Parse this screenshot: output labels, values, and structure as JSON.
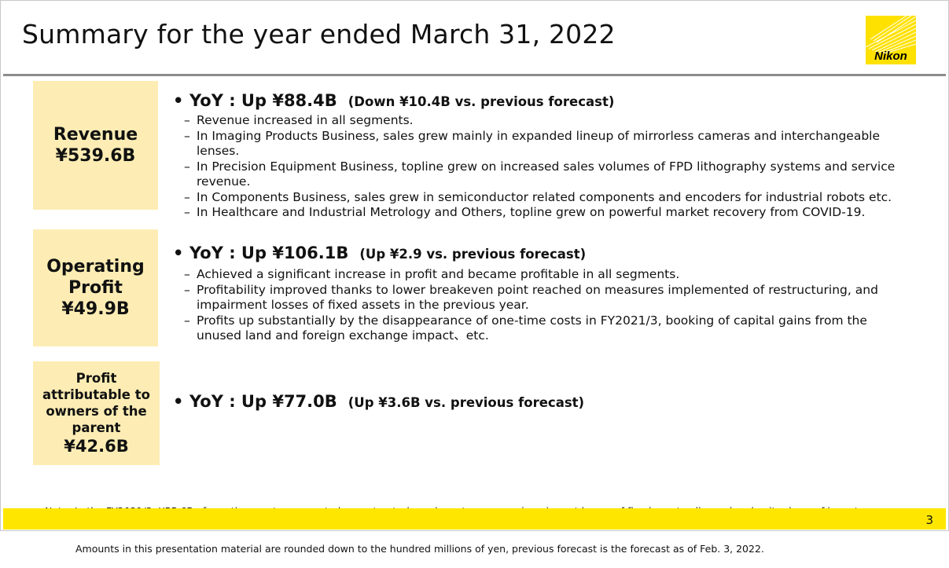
{
  "slide": {
    "title": "Summary for the year ended March 31, 2022",
    "page_number": "3"
  },
  "logo": {
    "text": "Nikon",
    "color": "#FFE100"
  },
  "colors": {
    "box_fill": "#FDEDB4",
    "footer": "#FFE600",
    "rule": "#8c8c8c"
  },
  "sections": [
    {
      "box_lines": [
        "Revenue",
        "¥539.6B"
      ],
      "yoy": "YoY : Up ¥88.4B",
      "vs_forecast": "(Down ¥10.4B vs. previous forecast)",
      "items": [
        [
          "Revenue increased in all segments."
        ],
        [
          "In Imaging Products Business, sales grew mainly in expanded lineup of mirrorless cameras and interchangeable",
          "lenses."
        ],
        [
          "In Precision Equipment Business, topline grew on increased sales volumes of FPD lithography systems and service",
          "revenue."
        ],
        [
          "In Components Business, sales grew in semiconductor related components and encoders for industrial robots etc."
        ],
        [
          "In Healthcare and Industrial Metrology and Others, topline grew on powerful market recovery from COVID-19."
        ]
      ]
    },
    {
      "box_lines": [
        "Operating",
        "Profit",
        "¥49.9B"
      ],
      "yoy": "YoY : Up ¥106.1B",
      "vs_forecast": "(Up ¥2.9 vs. previous forecast)",
      "items": [
        [
          "Achieved a significant increase in profit and became profitable in all segments."
        ],
        [
          "Profitability improved thanks to lower breakeven point reached on measures implemented of restructuring, and",
          "impairment losses of fixed assets in the previous year."
        ],
        [
          "Profits up substantially by the disappearance of one-time costs in FY2021/3, booking of capital gains from the",
          "unused land and foreign exchange impact、etc."
        ]
      ]
    },
    {
      "box_lines": [
        "Profit",
        "attributable to",
        "owners of the",
        "parent",
        "¥42.6B"
      ],
      "yoy": "YoY : Up ¥77.0B",
      "vs_forecast": "(Up ¥3.6B vs. previous forecast)",
      "items": []
    }
  ],
  "note": {
    "line1": "Note: In the FY2021/3, ¥55.6B of one-time costs was posted as restructuring relevant expenses, impairment losses of fixed assets, disposal and write-down of inventory.",
    "line2": "Amounts in this presentation material are rounded down to the hundred millions of yen, previous forecast is the forecast as of Feb. 3, 2022."
  },
  "bullet_glyph": "•",
  "dash_glyph": "–"
}
